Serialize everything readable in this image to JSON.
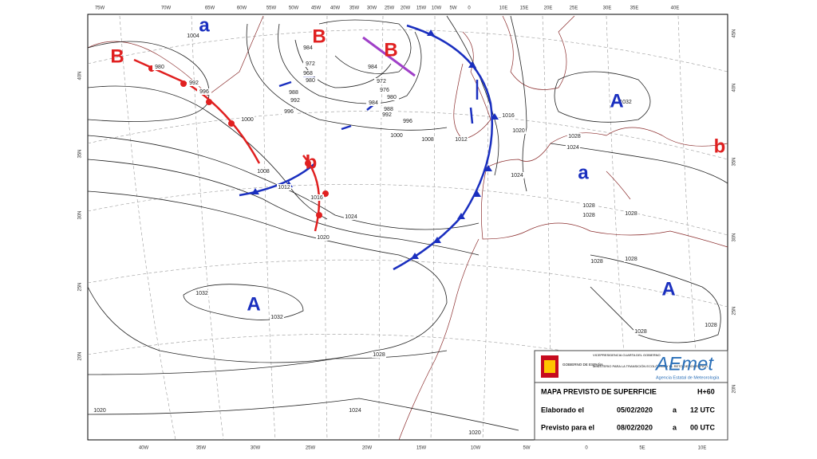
{
  "map": {
    "top_lon_labels": [
      "75W",
      "70W",
      "65W",
      "60W",
      "55W",
      "50W",
      "45W",
      "40W",
      "35W",
      "30W",
      "25W",
      "20W",
      "15W",
      "10W",
      "5W",
      "0",
      "10E",
      "15E",
      "20E",
      "25E",
      "30E",
      "35E",
      "40E"
    ],
    "bottom_lon_labels": [
      "40W",
      "35W",
      "30W",
      "25W",
      "20W",
      "15W",
      "10W",
      "5W",
      "0",
      "5E",
      "10E"
    ],
    "left_lat_labels": [
      "40N",
      "35N",
      "30N",
      "25N",
      "20N"
    ],
    "right_lat_labels": [
      "45N",
      "40N",
      "35N",
      "30N",
      "25N",
      "20N"
    ],
    "isobar_labels": [
      "1004",
      "980",
      "992",
      "996",
      "1000",
      "1008",
      "1012",
      "1016",
      "1020",
      "1024",
      "984",
      "972",
      "968",
      "980",
      "988",
      "992",
      "996",
      "984",
      "972",
      "976",
      "980",
      "984",
      "988",
      "992",
      "996",
      "1000",
      "1008",
      "1012",
      "1016",
      "1020",
      "1024",
      "1028",
      "1024",
      "1032",
      "1028",
      "1028",
      "1028",
      "1028",
      "1028",
      "1028",
      "1028",
      "1028",
      "1032",
      "1032",
      "1024",
      "1020",
      "1020"
    ],
    "pressure_centers": [
      "B",
      "a",
      "B",
      "B",
      "A",
      "b",
      "a",
      "b",
      "A",
      "A"
    ]
  },
  "footer": {
    "government": "GOBIERNO DE ESPAÑA",
    "vice": "VICEPRESIDENCIA CUARTA DEL GOBIERNO",
    "ministry": "MINISTERIO PARA LA TRANSICIÓN ECOLÓGICA Y EL RETO DEMOGRÁFICO",
    "agency_logo": "AEmet",
    "agency": "Agencia Estatal de Meteorología",
    "title": "MAPA PREVISTO DE SUPERFICIE",
    "run": "H+60",
    "made_label": "Elaborado el",
    "made_date": "05/02/2020",
    "made_at": "a",
    "made_time": "12 UTC",
    "valid_label": "Previsto para el",
    "valid_date": "08/02/2020",
    "valid_at": "a",
    "valid_time": "00 UTC"
  }
}
